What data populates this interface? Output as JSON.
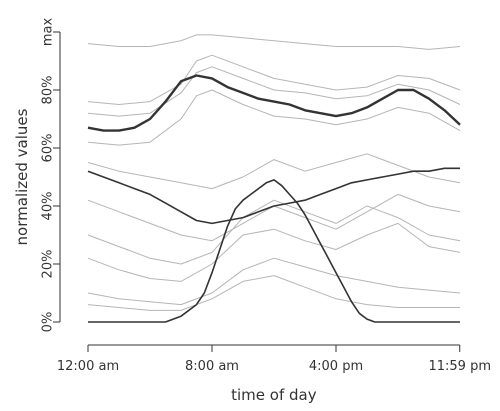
{
  "chart_data": {
    "type": "line",
    "title": "",
    "xlabel": "time of day",
    "ylabel": "normalized values",
    "x_unit": "hours",
    "xlim": [
      0,
      24
    ],
    "ylim": [
      0,
      1
    ],
    "x_ticks": [
      {
        "value": 0,
        "label": "12:00 am"
      },
      {
        "value": 8,
        "label": "8:00 am"
      },
      {
        "value": 16,
        "label": "4:00 pm"
      },
      {
        "value": 23.983,
        "label": "11:59 pm"
      }
    ],
    "y_ticks": [
      {
        "value": 0,
        "label": "0%"
      },
      {
        "value": 0.2,
        "label": "20%"
      },
      {
        "value": 0.4,
        "label": "40%"
      },
      {
        "value": 0.6,
        "label": "60%"
      },
      {
        "value": 0.8,
        "label": "80%"
      },
      {
        "value": 1.0,
        "label": "max"
      }
    ],
    "grid": false,
    "legend": "none",
    "colors": {
      "background_lines": "#b5b5b5",
      "highlight_lines": "#333333",
      "axis": "#333333"
    },
    "series": [
      {
        "style": "highlight",
        "x": [
          0,
          1,
          2,
          3,
          4,
          5,
          6,
          7,
          8,
          9,
          10,
          11,
          12,
          13,
          14,
          15,
          16,
          17,
          18,
          19,
          20,
          21,
          22,
          23,
          24
        ],
        "values": [
          0.67,
          0.66,
          0.66,
          0.67,
          0.7,
          0.76,
          0.83,
          0.85,
          0.84,
          0.81,
          0.79,
          0.77,
          0.76,
          0.75,
          0.73,
          0.72,
          0.71,
          0.72,
          0.74,
          0.77,
          0.8,
          0.8,
          0.77,
          0.73,
          0.68
        ]
      },
      {
        "style": "highlight",
        "x": [
          0,
          1,
          2,
          3,
          4,
          5,
          6,
          7,
          8,
          9,
          10,
          11,
          12,
          13,
          14,
          15,
          16,
          17,
          18,
          19,
          20,
          21,
          22,
          23,
          24
        ],
        "values": [
          0.52,
          0.5,
          0.48,
          0.46,
          0.44,
          0.41,
          0.38,
          0.35,
          0.34,
          0.35,
          0.36,
          0.38,
          0.4,
          0.41,
          0.42,
          0.44,
          0.46,
          0.48,
          0.49,
          0.5,
          0.51,
          0.52,
          0.52,
          0.53,
          0.53
        ]
      },
      {
        "style": "highlight",
        "x": [
          0,
          4,
          5,
          6,
          7,
          7.5,
          8,
          8.5,
          9,
          9.5,
          10,
          10.5,
          11,
          11.5,
          12,
          12.5,
          13,
          13.5,
          14,
          14.5,
          15,
          15.5,
          16,
          16.5,
          17,
          17.5,
          18,
          18.5,
          19,
          24
        ],
        "values": [
          0,
          0,
          0,
          0.02,
          0.06,
          0.1,
          0.17,
          0.25,
          0.33,
          0.39,
          0.42,
          0.44,
          0.46,
          0.48,
          0.49,
          0.47,
          0.44,
          0.41,
          0.37,
          0.32,
          0.27,
          0.22,
          0.17,
          0.12,
          0.07,
          0.03,
          0.01,
          0,
          0,
          0
        ]
      },
      {
        "style": "background",
        "x": [
          0,
          2,
          4,
          6,
          7,
          8,
          10,
          12,
          14,
          16,
          18,
          20,
          22,
          24
        ],
        "values": [
          0.96,
          0.95,
          0.95,
          0.97,
          0.99,
          0.99,
          0.98,
          0.97,
          0.96,
          0.95,
          0.95,
          0.95,
          0.94,
          0.95
        ]
      },
      {
        "style": "background",
        "x": [
          0,
          2,
          4,
          6,
          7,
          8,
          10,
          12,
          14,
          16,
          18,
          20,
          22,
          24
        ],
        "values": [
          0.76,
          0.75,
          0.76,
          0.82,
          0.9,
          0.92,
          0.88,
          0.84,
          0.82,
          0.8,
          0.81,
          0.85,
          0.84,
          0.8
        ]
      },
      {
        "style": "background",
        "x": [
          0,
          2,
          4,
          6,
          7,
          8,
          10,
          12,
          14,
          16,
          18,
          20,
          22,
          24
        ],
        "values": [
          0.72,
          0.71,
          0.72,
          0.79,
          0.86,
          0.88,
          0.84,
          0.8,
          0.79,
          0.77,
          0.78,
          0.82,
          0.8,
          0.75
        ]
      },
      {
        "style": "background",
        "x": [
          0,
          2,
          4,
          6,
          7,
          8,
          10,
          12,
          14,
          16,
          18,
          20,
          22,
          24
        ],
        "values": [
          0.62,
          0.61,
          0.62,
          0.7,
          0.78,
          0.8,
          0.75,
          0.71,
          0.7,
          0.68,
          0.7,
          0.74,
          0.72,
          0.66
        ]
      },
      {
        "style": "background",
        "x": [
          0,
          2,
          4,
          6,
          8,
          10,
          12,
          14,
          16,
          18,
          20,
          22,
          24
        ],
        "values": [
          0.55,
          0.52,
          0.5,
          0.48,
          0.46,
          0.5,
          0.56,
          0.52,
          0.55,
          0.58,
          0.54,
          0.5,
          0.48
        ]
      },
      {
        "style": "background",
        "x": [
          0,
          2,
          4,
          6,
          8,
          10,
          12,
          14,
          16,
          18,
          20,
          22,
          24
        ],
        "values": [
          0.3,
          0.26,
          0.22,
          0.2,
          0.24,
          0.36,
          0.42,
          0.38,
          0.34,
          0.4,
          0.36,
          0.3,
          0.28
        ]
      },
      {
        "style": "background",
        "x": [
          0,
          2,
          4,
          6,
          8,
          10,
          12,
          14,
          16,
          18,
          20,
          22,
          24
        ],
        "values": [
          0.22,
          0.18,
          0.15,
          0.14,
          0.2,
          0.3,
          0.32,
          0.28,
          0.25,
          0.3,
          0.34,
          0.26,
          0.24
        ]
      },
      {
        "style": "background",
        "x": [
          0,
          2,
          4,
          6,
          8,
          10,
          12,
          14,
          16,
          18,
          20,
          22,
          24
        ],
        "values": [
          0.1,
          0.08,
          0.07,
          0.06,
          0.1,
          0.18,
          0.22,
          0.19,
          0.16,
          0.14,
          0.12,
          0.11,
          0.1
        ]
      },
      {
        "style": "background",
        "x": [
          0,
          2,
          4,
          6,
          8,
          10,
          12,
          14,
          16,
          18,
          20,
          22,
          24
        ],
        "values": [
          0.06,
          0.05,
          0.04,
          0.04,
          0.08,
          0.14,
          0.16,
          0.12,
          0.08,
          0.06,
          0.05,
          0.05,
          0.05
        ]
      },
      {
        "style": "background",
        "x": [
          0,
          2,
          4,
          6,
          8,
          10,
          12,
          14,
          16,
          18,
          20,
          22,
          24
        ],
        "values": [
          0.42,
          0.38,
          0.34,
          0.3,
          0.28,
          0.34,
          0.4,
          0.36,
          0.32,
          0.38,
          0.44,
          0.4,
          0.38
        ]
      }
    ]
  }
}
